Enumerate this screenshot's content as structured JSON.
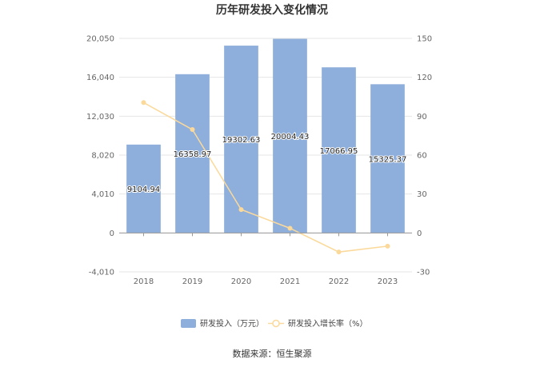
{
  "chart_data": {
    "type": "bar",
    "title": "历年研发投入变化情况",
    "categories": [
      "2018",
      "2019",
      "2020",
      "2021",
      "2022",
      "2023"
    ],
    "series": [
      {
        "name": "研发投入（万元）",
        "type": "bar",
        "axis": "left",
        "color": "#8eaedb",
        "values": [
          9104.94,
          16358.97,
          19302.63,
          20004.43,
          17066.95,
          15325.37
        ],
        "labels": [
          "9104.94",
          "16358.97",
          "19302.63",
          "20004.43",
          "17066.95",
          "15325.37"
        ]
      },
      {
        "name": "研发投入增长率（%）",
        "type": "line",
        "axis": "right",
        "color": "#fbd99a",
        "values": [
          100.5,
          79.7,
          18.0,
          3.6,
          -14.7,
          -10.2
        ]
      }
    ],
    "y_left": {
      "ticks": [
        "20,050",
        "16,040",
        "12,030",
        "8,020",
        "4,010",
        "0",
        "-4,010"
      ],
      "ylim": [
        -4010,
        20050
      ]
    },
    "y_right": {
      "ticks": [
        "150",
        "120",
        "90",
        "60",
        "30",
        "0",
        "-30"
      ],
      "ylim": [
        -30,
        150
      ]
    },
    "grid": true,
    "legend_position": "bottom",
    "source": "数据来源：恒生聚源"
  }
}
